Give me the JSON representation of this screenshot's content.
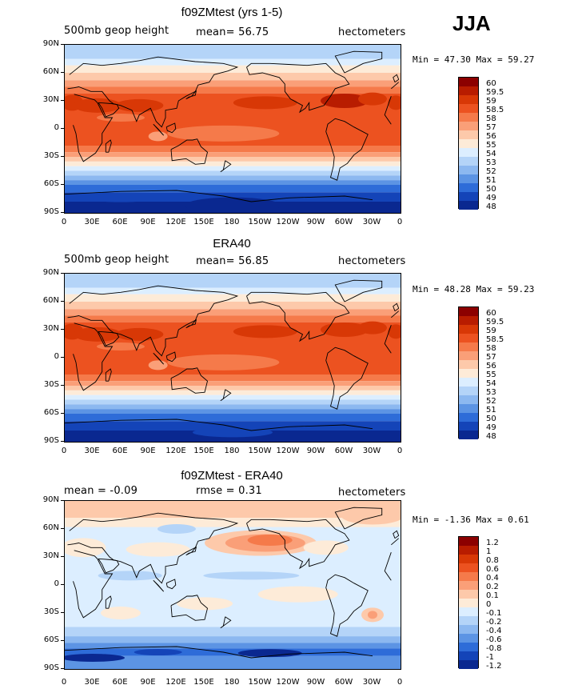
{
  "season": "JJA",
  "x_ticks": [
    "0",
    "30E",
    "60E",
    "90E",
    "120E",
    "150E",
    "180",
    "150W",
    "120W",
    "90W",
    "60W",
    "30W",
    "0"
  ],
  "y_ticks": [
    "90N",
    "60N",
    "30N",
    "0",
    "30S",
    "60S",
    "90S"
  ],
  "panels": [
    {
      "title": "f09ZMtest (yrs 1-5)",
      "left_label": "500mb geop height",
      "center_label": "mean=  56.75",
      "right_label": "hectometers",
      "minmax": "Min =  47.30 Max =  59.27",
      "levels": [
        "60",
        "59.5",
        "59",
        "58.5",
        "58",
        "57",
        "56",
        "55",
        "54",
        "53",
        "52",
        "51",
        "50",
        "49",
        "48"
      ],
      "colors": [
        "#8c0000",
        "#b81c00",
        "#d83806",
        "#ec5220",
        "#f57a4a",
        "#fa9f78",
        "#fdc9aa",
        "#fdebd8",
        "#dceeff",
        "#b4d4f8",
        "#8cb8f0",
        "#5c94e4",
        "#2e6cd8",
        "#1444b8",
        "#0a2890"
      ]
    },
    {
      "title": "ERA40",
      "left_label": "500mb geop height",
      "center_label": "mean=  56.85",
      "right_label": "hectometers",
      "minmax": "Min =  48.28 Max =  59.23",
      "levels": [
        "60",
        "59.5",
        "59",
        "58.5",
        "58",
        "57",
        "56",
        "55",
        "54",
        "53",
        "52",
        "51",
        "50",
        "49",
        "48"
      ],
      "colors": [
        "#8c0000",
        "#b81c00",
        "#d83806",
        "#ec5220",
        "#f57a4a",
        "#fa9f78",
        "#fdc9aa",
        "#fdebd8",
        "#dceeff",
        "#b4d4f8",
        "#8cb8f0",
        "#5c94e4",
        "#2e6cd8",
        "#1444b8",
        "#0a2890"
      ]
    },
    {
      "title": "f09ZMtest - ERA40",
      "left_label": "mean =  -0.09",
      "center_label": "rmse =   0.31",
      "right_label": "hectometers",
      "minmax": "Min =  -1.36 Max =   0.61",
      "levels": [
        "1.2",
        "1",
        "0.8",
        "0.6",
        "0.4",
        "0.2",
        "0.1",
        "0",
        "-0.1",
        "-0.2",
        "-0.4",
        "-0.6",
        "-0.8",
        "-1",
        "-1.2"
      ],
      "colors": [
        "#8c0000",
        "#b81c00",
        "#d83806",
        "#ec5220",
        "#f57a4a",
        "#fa9f78",
        "#fdc9aa",
        "#fdebd8",
        "#dceeff",
        "#b4d4f8",
        "#8cb8f0",
        "#5c94e4",
        "#2e6cd8",
        "#1444b8",
        "#0a2890"
      ]
    }
  ]
}
